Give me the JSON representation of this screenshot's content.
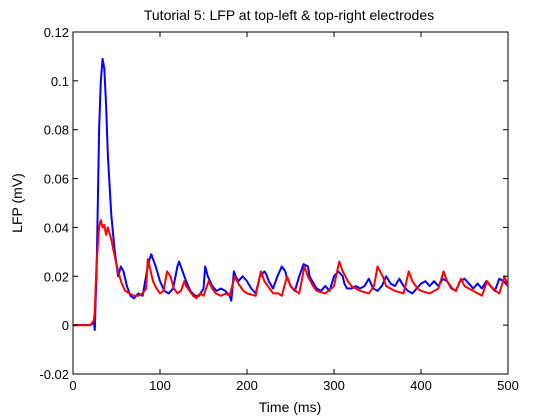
{
  "chart_data": {
    "type": "line",
    "title": "Tutorial 5: LFP at top-left & top-right electrodes",
    "xlabel": "Time (ms)",
    "ylabel": "LFP (mV)",
    "xlim": [
      0,
      500
    ],
    "ylim": [
      -0.02,
      0.12
    ],
    "xticks": [
      0,
      100,
      200,
      300,
      400,
      500
    ],
    "yticks": [
      -0.02,
      0,
      0.02,
      0.04,
      0.06,
      0.08,
      0.1,
      0.12
    ],
    "xtick_labels": [
      "0",
      "100",
      "200",
      "300",
      "400",
      "500"
    ],
    "ytick_labels": [
      "-0.02",
      "0",
      "0.02",
      "0.04",
      "0.06",
      "0.08",
      "0.1",
      "0.12"
    ],
    "grid": false,
    "legend": "none",
    "series": [
      {
        "color": "#0000ff",
        "x": [
          0,
          20,
          24,
          25,
          26,
          27,
          28,
          30,
          32,
          34,
          36,
          38,
          40,
          44,
          48,
          50,
          52,
          55,
          58,
          62,
          66,
          70,
          75,
          80,
          85,
          88,
          90,
          95,
          100,
          105,
          110,
          115,
          120,
          122,
          126,
          130,
          135,
          140,
          145,
          150,
          152,
          155,
          160,
          165,
          170,
          175,
          180,
          182,
          185,
          187,
          190,
          195,
          200,
          205,
          210,
          215,
          220,
          222,
          225,
          230,
          235,
          240,
          244,
          246,
          248,
          250,
          255,
          260,
          265,
          270,
          272,
          275,
          280,
          285,
          290,
          295,
          300,
          305,
          310,
          312,
          315,
          320,
          325,
          330,
          335,
          340,
          345,
          350,
          355,
          360,
          365,
          370,
          375,
          380,
          385,
          390,
          395,
          400,
          405,
          410,
          415,
          420,
          425,
          430,
          435,
          440,
          445,
          450,
          455,
          460,
          465,
          470,
          475,
          480,
          485,
          490,
          495,
          500
        ],
        "values": [
          0,
          0,
          0.001,
          -0.002,
          0.01,
          0.02,
          0.04,
          0.08,
          0.1,
          0.109,
          0.105,
          0.09,
          0.07,
          0.045,
          0.03,
          0.025,
          0.02,
          0.024,
          0.022,
          0.016,
          0.012,
          0.011,
          0.013,
          0.012,
          0.022,
          0.027,
          0.029,
          0.024,
          0.018,
          0.014,
          0.013,
          0.015,
          0.024,
          0.026,
          0.022,
          0.018,
          0.014,
          0.012,
          0.012,
          0.015,
          0.024,
          0.02,
          0.016,
          0.014,
          0.015,
          0.014,
          0.012,
          0.01,
          0.022,
          0.02,
          0.018,
          0.02,
          0.018,
          0.015,
          0.013,
          0.02,
          0.022,
          0.021,
          0.018,
          0.015,
          0.02,
          0.024,
          0.022,
          0.019,
          0.018,
          0.016,
          0.014,
          0.02,
          0.025,
          0.024,
          0.02,
          0.018,
          0.015,
          0.014,
          0.016,
          0.014,
          0.02,
          0.022,
          0.02,
          0.017,
          0.015,
          0.015,
          0.016,
          0.015,
          0.016,
          0.019,
          0.015,
          0.014,
          0.016,
          0.02,
          0.017,
          0.016,
          0.019,
          0.016,
          0.014,
          0.013,
          0.015,
          0.017,
          0.018,
          0.016,
          0.018,
          0.016,
          0.019,
          0.018,
          0.015,
          0.014,
          0.018,
          0.019,
          0.017,
          0.015,
          0.017,
          0.015,
          0.018,
          0.016,
          0.014,
          0.019,
          0.018,
          0.016
        ]
      },
      {
        "color": "#ff0000",
        "x": [
          0,
          20,
          24,
          25,
          26,
          27,
          28,
          30,
          32,
          34,
          36,
          38,
          40,
          44,
          48,
          52,
          56,
          60,
          65,
          70,
          75,
          80,
          84,
          86,
          88,
          92,
          96,
          100,
          104,
          108,
          112,
          116,
          120,
          124,
          128,
          130,
          134,
          138,
          142,
          146,
          150,
          156,
          160,
          164,
          170,
          176,
          180,
          186,
          190,
          196,
          200,
          210,
          216,
          220,
          226,
          230,
          236,
          240,
          246,
          250,
          256,
          260,
          266,
          270,
          276,
          280,
          290,
          300,
          306,
          310,
          316,
          320,
          330,
          340,
          346,
          350,
          356,
          360,
          370,
          380,
          386,
          390,
          396,
          400,
          410,
          420,
          426,
          430,
          436,
          440,
          446,
          450,
          460,
          470,
          476,
          480,
          486,
          490,
          496,
          500
        ],
        "values": [
          0,
          0,
          0.002,
          0.006,
          0.015,
          0.025,
          0.03,
          0.04,
          0.043,
          0.04,
          0.041,
          0.037,
          0.04,
          0.035,
          0.028,
          0.022,
          0.017,
          0.014,
          0.013,
          0.012,
          0.012,
          0.013,
          0.015,
          0.027,
          0.024,
          0.018,
          0.015,
          0.013,
          0.014,
          0.022,
          0.02,
          0.015,
          0.013,
          0.014,
          0.018,
          0.016,
          0.014,
          0.012,
          0.011,
          0.013,
          0.012,
          0.018,
          0.015,
          0.013,
          0.012,
          0.013,
          0.012,
          0.02,
          0.017,
          0.014,
          0.013,
          0.012,
          0.022,
          0.018,
          0.015,
          0.013,
          0.013,
          0.012,
          0.02,
          0.016,
          0.014,
          0.013,
          0.024,
          0.02,
          0.016,
          0.014,
          0.013,
          0.016,
          0.026,
          0.022,
          0.018,
          0.016,
          0.014,
          0.013,
          0.016,
          0.024,
          0.02,
          0.016,
          0.014,
          0.013,
          0.022,
          0.018,
          0.015,
          0.014,
          0.013,
          0.015,
          0.022,
          0.018,
          0.015,
          0.014,
          0.019,
          0.016,
          0.014,
          0.012,
          0.018,
          0.016,
          0.014,
          0.013,
          0.02,
          0.016
        ]
      }
    ]
  }
}
